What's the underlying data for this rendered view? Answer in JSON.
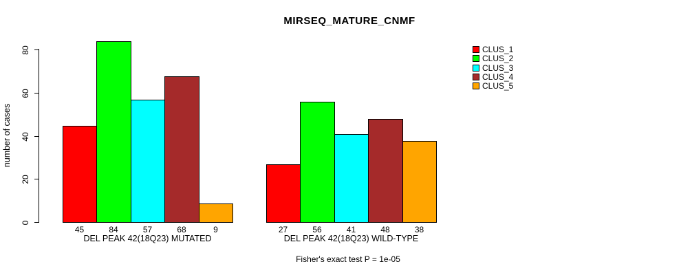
{
  "chart_data": {
    "type": "bar",
    "title": "MIRSEQ_MATURE_CNMF",
    "ylabel": "number of cases",
    "ylim": [
      0,
      80
    ],
    "yticks": [
      0,
      20,
      40,
      60,
      80
    ],
    "grid": false,
    "legend_position": "right",
    "categories": [
      "DEL PEAK 42(18Q23) MUTATED",
      "DEL PEAK 42(18Q23) WILD-TYPE"
    ],
    "series": [
      {
        "name": "CLUS_1",
        "color": "#FF0000",
        "values": [
          45,
          27
        ]
      },
      {
        "name": "CLUS_2",
        "color": "#00FF00",
        "values": [
          84,
          56
        ]
      },
      {
        "name": "CLUS_3",
        "color": "#00FFFF",
        "values": [
          57,
          41
        ]
      },
      {
        "name": "CLUS_4",
        "color": "#A52A2A",
        "values": [
          68,
          48
        ]
      },
      {
        "name": "CLUS_5",
        "color": "#FFA500",
        "values": [
          9,
          38
        ]
      }
    ],
    "bar_value_labels": true,
    "footnote": "Fisher's exact test P = 1e-05"
  }
}
